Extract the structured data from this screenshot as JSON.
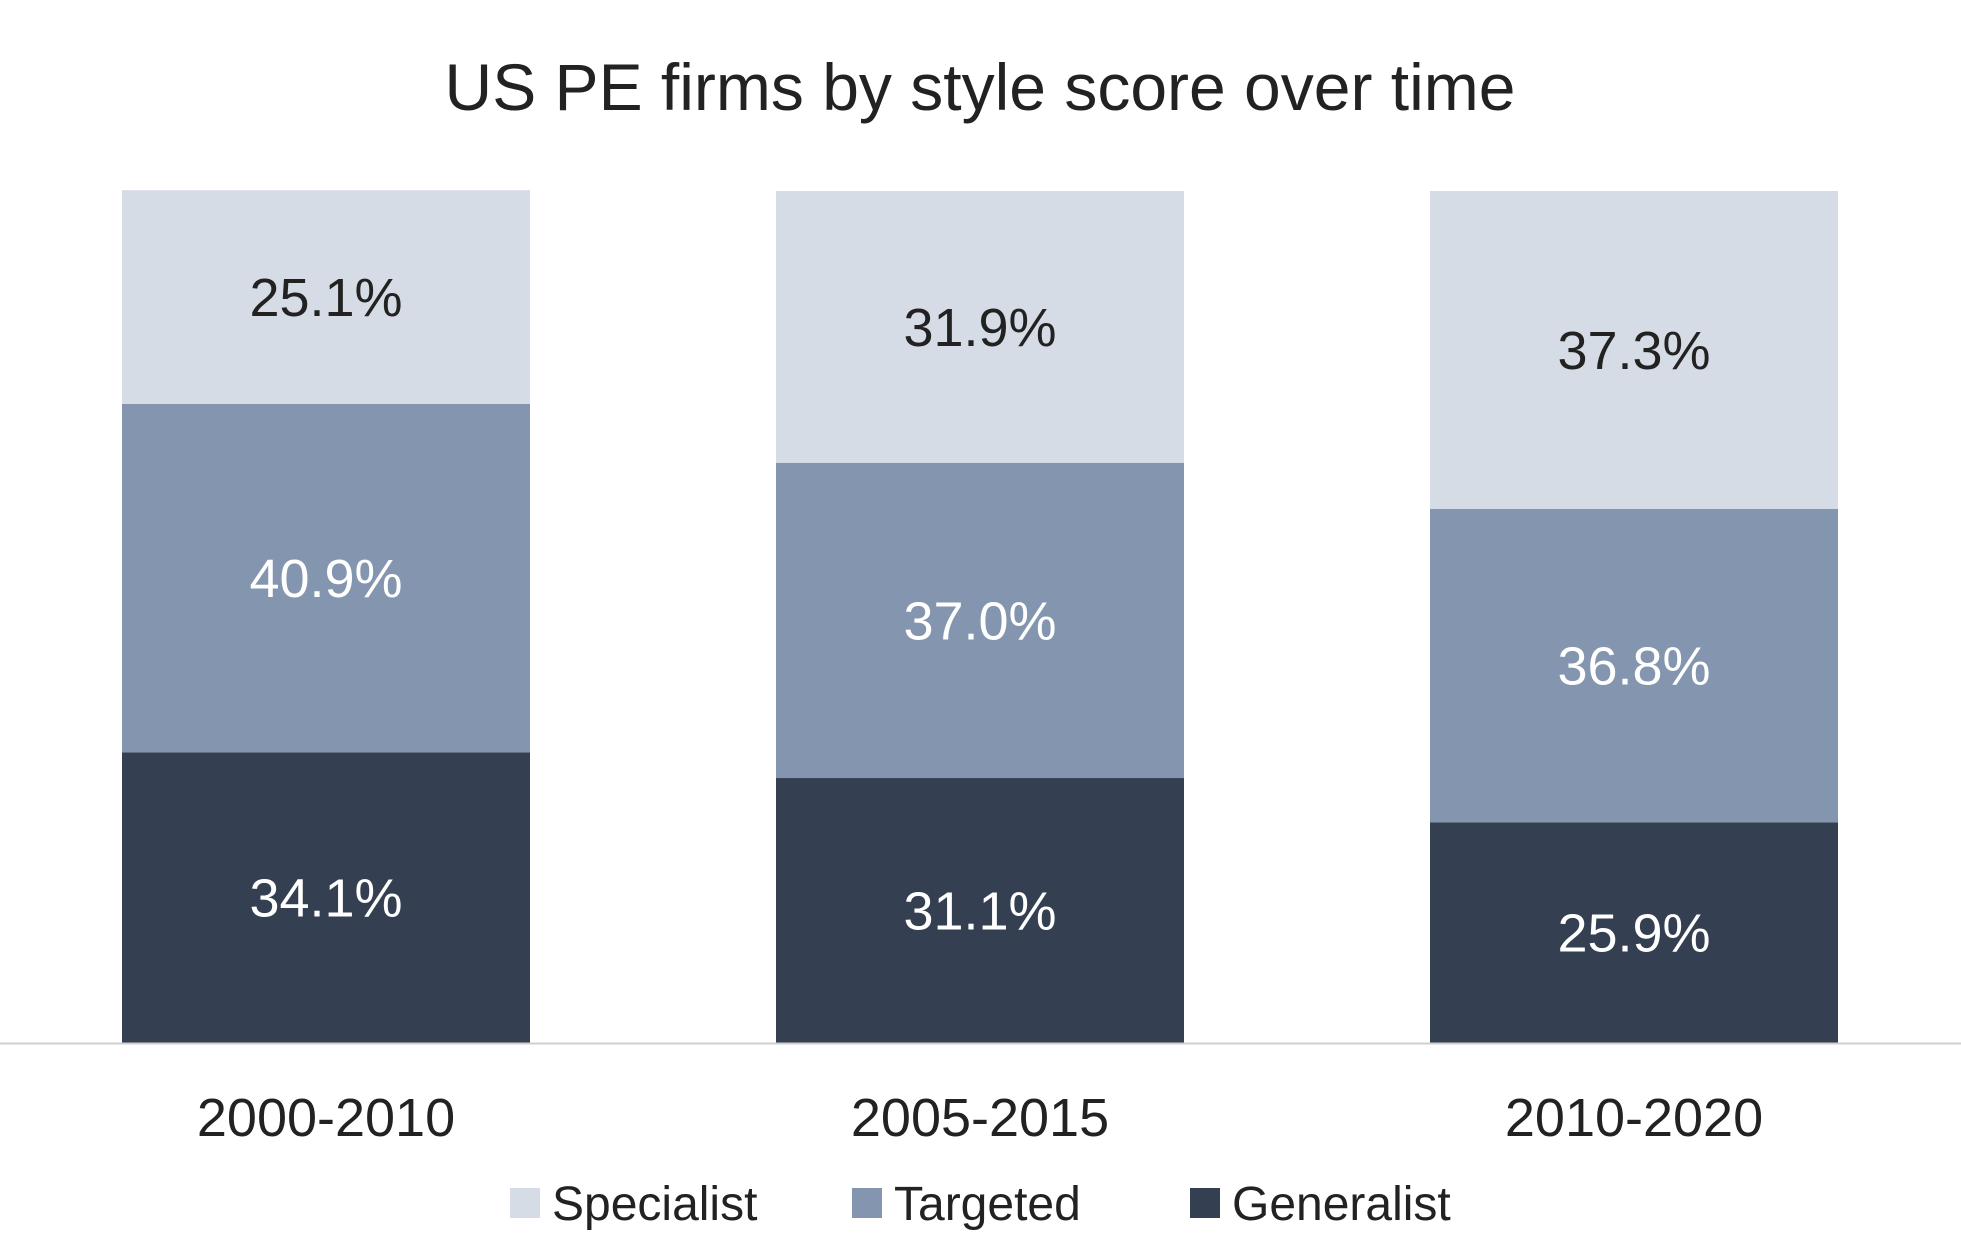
{
  "chart_data": {
    "type": "bar",
    "stacked": true,
    "title": "US PE firms by style score over time",
    "xlabel": "",
    "ylabel": "",
    "ylim": [
      0,
      100
    ],
    "grid": false,
    "legend_position": "bottom",
    "value_format": "percent-1dp",
    "categories": [
      "2000-2010",
      "2005-2015",
      "2010-2020"
    ],
    "series": [
      {
        "name": "Generalist",
        "color": "#343f51",
        "label_color": "#ffffff",
        "values": [
          34.1,
          31.1,
          25.9
        ]
      },
      {
        "name": "Targeted",
        "color": "#8496af",
        "label_color": "#ffffff",
        "values": [
          40.9,
          37.0,
          36.8
        ]
      },
      {
        "name": "Specialist",
        "color": "#d6dce6",
        "label_color": "#222222",
        "values": [
          25.1,
          31.9,
          37.3
        ]
      }
    ],
    "legend_order": [
      "Specialist",
      "Targeted",
      "Generalist"
    ],
    "axis_color": "#cfcfcf"
  }
}
